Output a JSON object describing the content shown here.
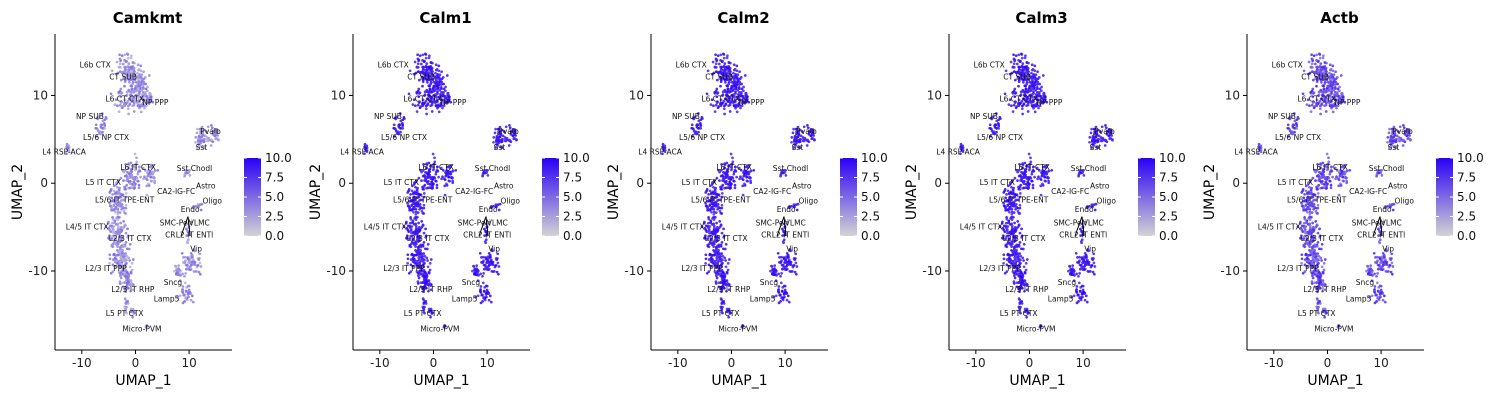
{
  "chart_data": [
    {
      "type": "scatter",
      "title": "Camkmt",
      "xlabel": "UMAP_1",
      "ylabel": "UMAP_2",
      "xlim": [
        -15,
        18
      ],
      "ylim": [
        -19,
        17
      ],
      "xticks": [
        -10,
        0,
        10
      ],
      "yticks": [
        10,
        0,
        -10
      ],
      "expression": "low"
    },
    {
      "type": "scatter",
      "title": "Calm1",
      "xlabel": "UMAP_1",
      "ylabel": "UMAP_2",
      "xlim": [
        -15,
        18
      ],
      "ylim": [
        -19,
        17
      ],
      "xticks": [
        -10,
        0,
        10
      ],
      "yticks": [
        10,
        0,
        -10
      ],
      "expression": "high"
    },
    {
      "type": "scatter",
      "title": "Calm2",
      "xlabel": "UMAP_1",
      "ylabel": "UMAP_2",
      "xlim": [
        -15,
        18
      ],
      "ylim": [
        -19,
        17
      ],
      "xticks": [
        -10,
        0,
        10
      ],
      "yticks": [
        10,
        0,
        -10
      ],
      "expression": "high"
    },
    {
      "type": "scatter",
      "title": "Calm3",
      "xlabel": "UMAP_1",
      "ylabel": "UMAP_2",
      "xlim": [
        -15,
        18
      ],
      "ylim": [
        -19,
        17
      ],
      "xticks": [
        -10,
        0,
        10
      ],
      "yticks": [
        10,
        0,
        -10
      ],
      "expression": "high"
    },
    {
      "type": "scatter",
      "title": "Actb",
      "xlabel": "UMAP_1",
      "ylabel": "UMAP_2",
      "xlim": [
        -15,
        18
      ],
      "ylim": [
        -19,
        17
      ],
      "xticks": [
        -10,
        0,
        10
      ],
      "yticks": [
        10,
        0,
        -10
      ],
      "expression": "medium"
    }
  ],
  "cluster_labels": [
    {
      "name": "L6b CTX",
      "x": -7.5,
      "y": 13.2
    },
    {
      "name": "CT SUB",
      "x": -2.3,
      "y": 11.8
    },
    {
      "name": "L6 CT CTX",
      "x": -2.0,
      "y": 9.3
    },
    {
      "name": "NP PPP",
      "x": 3.7,
      "y": 8.9
    },
    {
      "name": "NP SUB",
      "x": -8.5,
      "y": 7.3
    },
    {
      "name": "L5/6 NP CTX",
      "x": -5.5,
      "y": 4.9
    },
    {
      "name": "Pvalb",
      "x": 14.0,
      "y": 5.6
    },
    {
      "name": "Sst",
      "x": 12.3,
      "y": 3.8
    },
    {
      "name": "L4 RSP-ACA",
      "x": -13.3,
      "y": 3.3
    },
    {
      "name": "Sst Chodl",
      "x": 11.0,
      "y": 1.4
    },
    {
      "name": "L6 IT CTX",
      "x": 0.5,
      "y": 1.5
    },
    {
      "name": "L5 IT CTX",
      "x": -6.0,
      "y": -0.2
    },
    {
      "name": "CA2-IG-FC",
      "x": 7.6,
      "y": -1.2
    },
    {
      "name": "Astro",
      "x": 13.1,
      "y": -0.6
    },
    {
      "name": "L5/6 IT TPE-ENT",
      "x": -2.0,
      "y": -2.2
    },
    {
      "name": "Oligo",
      "x": 14.3,
      "y": -2.3
    },
    {
      "name": "L4/5 IT CTX",
      "x": -9.0,
      "y": -5.3
    },
    {
      "name": "Endo",
      "x": 10.2,
      "y": -3.3
    },
    {
      "name": "SMC-Peri",
      "x": 7.6,
      "y": -4.8
    },
    {
      "name": "VLMC",
      "x": 11.9,
      "y": -4.8
    },
    {
      "name": "L2/3 IT CTX",
      "x": -1.0,
      "y": -6.6
    },
    {
      "name": "CR",
      "x": 6.5,
      "y": -6.2
    },
    {
      "name": "L2 IT ENTl",
      "x": 11.0,
      "y": -6.2
    },
    {
      "name": "Vip",
      "x": 11.3,
      "y": -7.8
    },
    {
      "name": "L2/3 IT PPP",
      "x": -5.5,
      "y": -10.0
    },
    {
      "name": "Sncg",
      "x": 7.0,
      "y": -11.6
    },
    {
      "name": "L2/3 IT RHP",
      "x": -0.5,
      "y": -12.4
    },
    {
      "name": "Lamp5",
      "x": 5.8,
      "y": -13.5
    },
    {
      "name": "L5 PT CTX",
      "x": -2.0,
      "y": -15.1
    },
    {
      "name": "Micro-PVM",
      "x": 1.2,
      "y": -16.9
    }
  ],
  "legend": {
    "values": [
      "10.0",
      "7.5",
      "5.0",
      "2.5",
      "0.0"
    ],
    "range": [
      0,
      10
    ]
  },
  "colors": {
    "low": "#d3d3d3",
    "high": "#2a00f5",
    "axis": "#000000"
  }
}
